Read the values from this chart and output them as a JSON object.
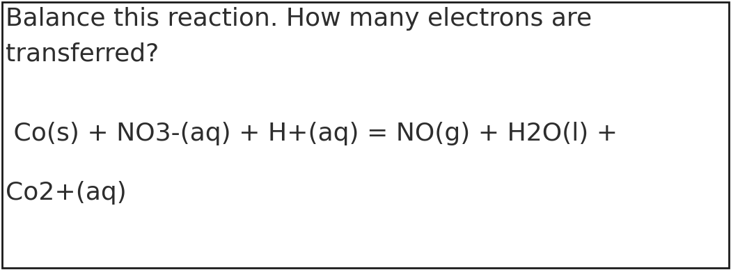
{
  "line1": "Balance this reaction. How many electrons are",
  "line2": "transferred?",
  "line3": " Co(s) + NO3-(aq) + H+(aq) = NO(g) + H2O(l) +",
  "line4": "Co2+(aq)",
  "bg_color": "#ffffff",
  "border_color": "#1a1a1a",
  "text_color": "#2d2d2d",
  "font_size": 26,
  "fig_width": 10.5,
  "fig_height": 3.88,
  "dpi": 100
}
